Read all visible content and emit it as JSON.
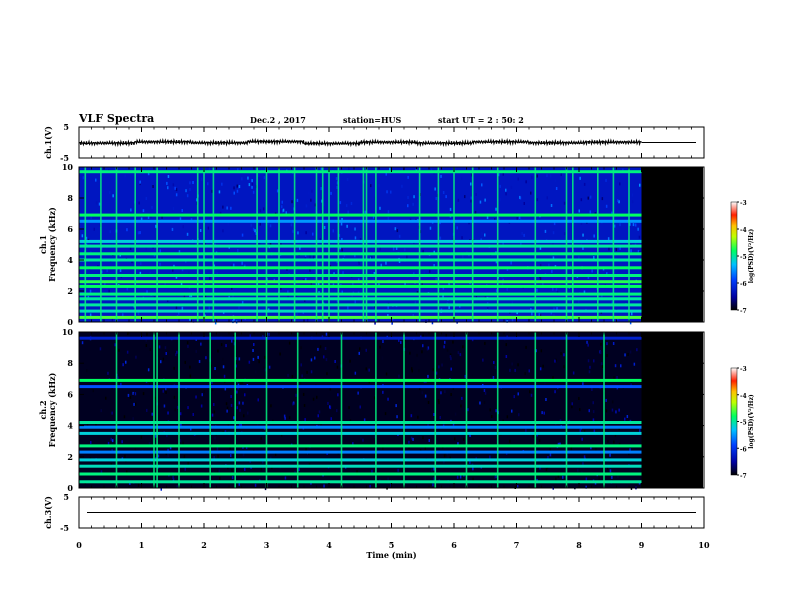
{
  "header": {
    "title": "VLF Spectra",
    "date": "Dec.2  , 2017",
    "station": "station=HUS",
    "start_ut": "start  UT =   2 : 50: 2"
  },
  "chart_data": [
    {
      "type": "line",
      "panel": "waveform-ch1",
      "ylabel": "ch.1(V)",
      "yticks": [
        "5",
        "-5"
      ],
      "ylim": [
        -5,
        5
      ],
      "series": [
        {
          "values": [
            -0.2,
            0.2,
            -0.1,
            0.3,
            -0.3,
            0.1,
            -0.2,
            0.2,
            -0.1,
            0.1
          ]
        }
      ],
      "data_end_min": 9.0
    },
    {
      "type": "heatmap",
      "panel": "spectrogram-ch1",
      "ylabel": "ch.1\nFrequency (kHz)",
      "yticks": [
        "0",
        "2",
        "4",
        "6",
        "8",
        "10"
      ],
      "ylim": [
        0,
        10
      ],
      "xlim": [
        0,
        10
      ],
      "data_end_min": 9.0,
      "background_level": -6.3,
      "bands_khz": [
        {
          "f": 9.7,
          "level": -4.9
        },
        {
          "f": 6.9,
          "level": -4.8
        },
        {
          "f": 6.5,
          "level": -5.5
        },
        {
          "f": 5.2,
          "level": -5.2
        },
        {
          "f": 4.9,
          "level": -5.0
        },
        {
          "f": 4.4,
          "level": -4.9
        },
        {
          "f": 4.0,
          "level": -5.0
        },
        {
          "f": 3.5,
          "level": -4.8
        },
        {
          "f": 3.0,
          "level": -4.9
        },
        {
          "f": 2.6,
          "level": -4.7
        },
        {
          "f": 2.3,
          "level": -4.8
        },
        {
          "f": 1.8,
          "level": -4.9
        },
        {
          "f": 1.5,
          "level": -5.0
        },
        {
          "f": 1.1,
          "level": -5.0
        },
        {
          "f": 0.7,
          "level": -5.1
        },
        {
          "f": 0.3,
          "level": -4.6
        }
      ],
      "impulses_min": [
        0.1,
        0.35,
        0.6,
        0.9,
        1.25,
        1.9,
        2.0,
        2.15,
        2.85,
        3.0,
        3.2,
        3.45,
        3.8,
        3.9,
        4.0,
        4.15,
        4.55,
        4.6,
        4.75,
        5.45,
        5.75,
        6.0,
        6.3,
        6.7,
        7.3,
        7.8,
        7.9,
        8.3,
        8.55,
        8.8
      ]
    },
    {
      "type": "heatmap",
      "panel": "spectrogram-ch2",
      "ylabel": "ch.2\nFrequency (kHz)",
      "yticks": [
        "0",
        "2",
        "4",
        "6",
        "8",
        "10"
      ],
      "ylim": [
        0,
        10
      ],
      "xlim": [
        0,
        10
      ],
      "data_end_min": 9.0,
      "background_level": -6.9,
      "bands_khz": [
        {
          "f": 9.6,
          "level": -6.2
        },
        {
          "f": 6.9,
          "level": -4.8
        },
        {
          "f": 6.5,
          "level": -5.8
        },
        {
          "f": 4.2,
          "level": -5.0
        },
        {
          "f": 3.9,
          "level": -5.6
        },
        {
          "f": 3.5,
          "level": -5.2
        },
        {
          "f": 2.7,
          "level": -4.9
        },
        {
          "f": 2.3,
          "level": -5.6
        },
        {
          "f": 1.8,
          "level": -5.2
        },
        {
          "f": 1.4,
          "level": -5.1
        },
        {
          "f": 0.9,
          "level": -4.9
        },
        {
          "f": 0.4,
          "level": -5.0
        }
      ],
      "impulses_min": [
        0.6,
        1.2,
        1.25,
        1.6,
        2.1,
        2.5,
        3.0,
        3.5,
        4.2,
        4.75,
        5.2,
        5.7,
        6.2,
        6.7,
        7.3,
        7.8,
        8.4
      ]
    },
    {
      "type": "line",
      "panel": "waveform-ch3",
      "ylabel": "ch.3(V)",
      "xlabel": "Time (min)",
      "xticks": [
        "0",
        "1",
        "2",
        "3",
        "4",
        "5",
        "6",
        "7",
        "8",
        "9",
        "10"
      ],
      "xlim": [
        0,
        10
      ],
      "yticks": [
        "5",
        "-5"
      ],
      "ylim": [
        -5,
        5
      ],
      "series": [
        {
          "values": [
            0,
            0,
            0,
            0,
            0,
            0,
            0,
            0,
            0,
            0,
            0
          ]
        }
      ]
    }
  ],
  "colorbar": {
    "label": "log(PSD)(V²/Hz)",
    "ticks": [
      "-3",
      "-4",
      "-5",
      "-6",
      "-7"
    ],
    "range": [
      -7,
      -3
    ]
  }
}
